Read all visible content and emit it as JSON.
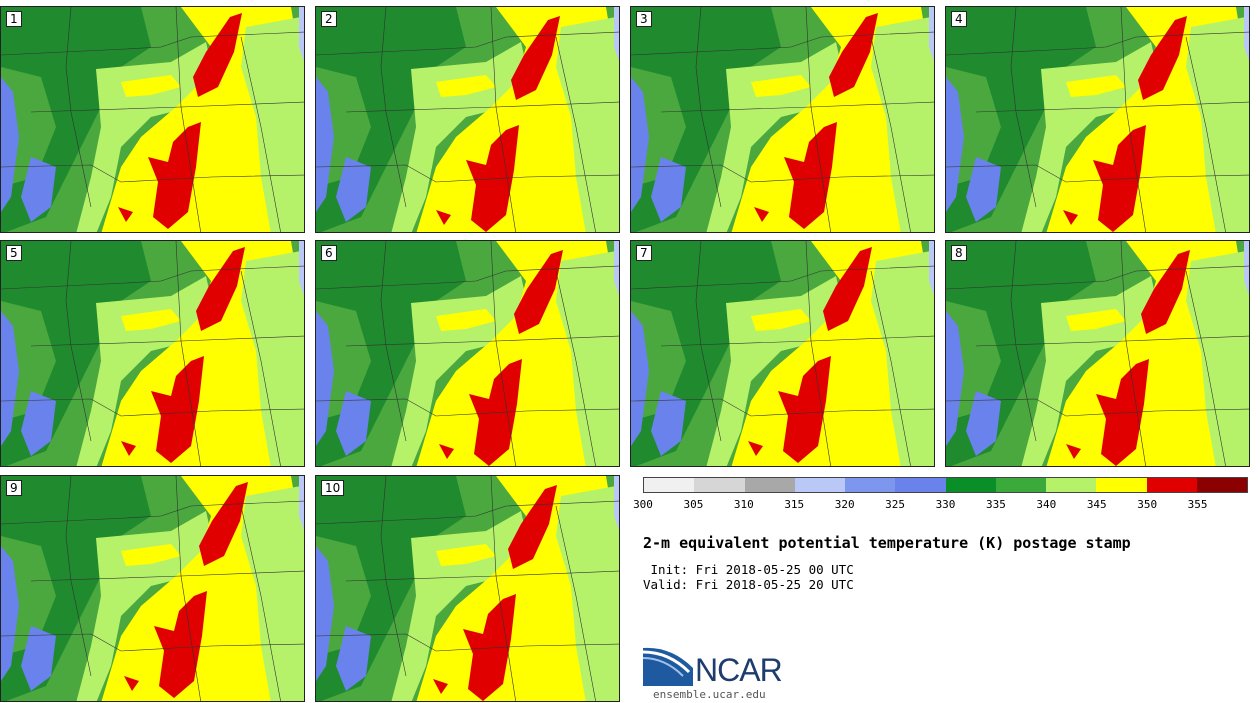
{
  "panels": [
    {
      "label": "1"
    },
    {
      "label": "2"
    },
    {
      "label": "3"
    },
    {
      "label": "4"
    },
    {
      "label": "5"
    },
    {
      "label": "6"
    },
    {
      "label": "7"
    },
    {
      "label": "8"
    },
    {
      "label": "9"
    },
    {
      "label": "10"
    }
  ],
  "legend": {
    "ticks": [
      "300",
      "305",
      "310",
      "315",
      "320",
      "325",
      "330",
      "335",
      "340",
      "345",
      "350",
      "355"
    ],
    "colors": [
      "#f0f0f0",
      "#d6d6d6",
      "#a8a8a8",
      "#b9c8f7",
      "#7d96ee",
      "#6a82ec",
      "#0a8f28",
      "#3aaa3a",
      "#b5f26a",
      "#ffff00",
      "#e00000",
      "#8b0000"
    ]
  },
  "title": "2-m equivalent potential temperature (K) postage stamp",
  "init": " Init: Fri 2018-05-25 00 UTC",
  "valid": "Valid: Fri 2018-05-25 20 UTC",
  "logo": {
    "text": "NCAR",
    "site": "ensemble.ucar.edu"
  },
  "map_colors": {
    "cold_blue": "#6a82ec",
    "dark_green": "#1f8a2e",
    "green": "#4aa83e",
    "light_green": "#b5f26a",
    "yellow": "#ffff00",
    "red": "#e00000",
    "lake": "#b9c8f7"
  }
}
